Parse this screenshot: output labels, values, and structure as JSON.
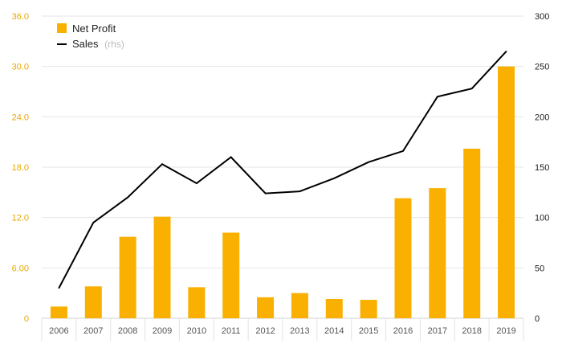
{
  "chart_data": {
    "type": "bar",
    "categories": [
      "2006",
      "2007",
      "2008",
      "2009",
      "2010",
      "2011",
      "2012",
      "2013",
      "2014",
      "2015",
      "2016",
      "2017",
      "2018",
      "2019"
    ],
    "series": [
      {
        "name": "Net Profit",
        "type": "bar",
        "axis": "left",
        "color": "#f9b000",
        "values": [
          1.4,
          3.8,
          9.7,
          12.1,
          3.7,
          10.2,
          2.5,
          3.0,
          2.3,
          2.2,
          14.3,
          15.5,
          20.2,
          30.0
        ]
      },
      {
        "name": "Sales",
        "type": "line",
        "axis": "right",
        "color": "#000000",
        "values": [
          30,
          95,
          120,
          153,
          134,
          160,
          124,
          126,
          139,
          155,
          166,
          220,
          228,
          265
        ]
      }
    ],
    "yleft": {
      "min": 0,
      "max": 36,
      "ticks": [
        "0",
        "6.00",
        "12.0",
        "18.0",
        "24.0",
        "30.0",
        "36.0"
      ],
      "color": "#e8a800"
    },
    "yright": {
      "min": 0,
      "max": 300,
      "ticks": [
        "0",
        "50",
        "100",
        "150",
        "200",
        "250",
        "300"
      ]
    },
    "legend": {
      "position": "top-left",
      "items": [
        {
          "label": "Net Profit",
          "note": ""
        },
        {
          "label": "Sales",
          "note": "(rhs)"
        }
      ]
    },
    "grid": true
  }
}
